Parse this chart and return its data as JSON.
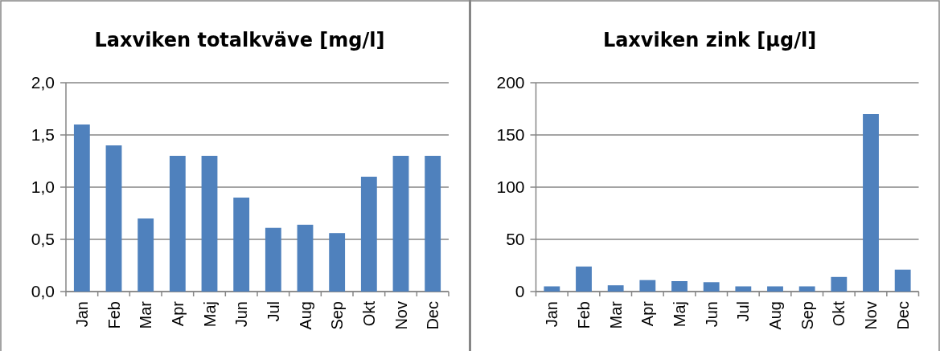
{
  "chart_data": [
    {
      "type": "bar",
      "title": "Laxviken totalkväve [mg/l]",
      "categories": [
        "Jan",
        "Feb",
        "Mar",
        "Apr",
        "Maj",
        "Jun",
        "Jul",
        "Aug",
        "Sep",
        "Okt",
        "Nov",
        "Dec"
      ],
      "values": [
        1.6,
        1.4,
        0.7,
        1.3,
        1.3,
        0.9,
        0.61,
        0.64,
        0.56,
        1.1,
        1.3,
        1.3
      ],
      "color": "#4f81bd",
      "ylim": [
        0,
        2
      ],
      "yticks": [
        {
          "value": 0,
          "label": "0,0"
        },
        {
          "value": 0.5,
          "label": "0,5"
        },
        {
          "value": 1,
          "label": "1,0"
        },
        {
          "value": 1.5,
          "label": "1,5"
        },
        {
          "value": 2,
          "label": "2,0"
        }
      ],
      "grid": "y"
    },
    {
      "type": "bar",
      "title": "Laxviken zink [µg/l]",
      "categories": [
        "Jan",
        "Feb",
        "Mar",
        "Apr",
        "Maj",
        "Jun",
        "Jul",
        "Aug",
        "Sep",
        "Okt",
        "Nov",
        "Dec"
      ],
      "values": [
        5,
        24,
        6,
        11,
        10,
        9,
        5,
        5,
        5,
        14,
        170,
        21
      ],
      "color": "#4f81bd",
      "ylim": [
        0,
        200
      ],
      "yticks": [
        0,
        50,
        100,
        150,
        200
      ],
      "grid": "y"
    }
  ]
}
